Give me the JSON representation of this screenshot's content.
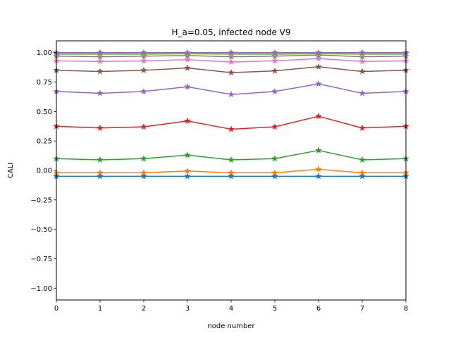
{
  "chart_data": {
    "type": "line",
    "title": "H_a=0.05, infected node V9",
    "xlabel": "node number",
    "ylabel": "CALI",
    "xlim": [
      0,
      8
    ],
    "ylim": [
      -1.1,
      1.1
    ],
    "x": [
      0,
      1,
      2,
      3,
      4,
      5,
      6,
      7,
      8
    ],
    "xticks": [
      "0",
      "1",
      "2",
      "3",
      "4",
      "5",
      "6",
      "7",
      "8"
    ],
    "yticks": [
      -1.0,
      -0.75,
      -0.5,
      -0.25,
      0.0,
      0.25,
      0.5,
      0.75,
      1.0
    ],
    "ytick_labels": [
      "−1.00",
      "−0.75",
      "−0.50",
      "−0.25",
      "0.00",
      "0.25",
      "0.50",
      "0.75",
      "1.00"
    ],
    "grid": false,
    "marker": "star",
    "series": [
      {
        "color": "#1f77b4",
        "values": [
          -0.05,
          -0.05,
          -0.05,
          -0.05,
          -0.05,
          -0.05,
          -0.05,
          -0.05,
          -0.05
        ]
      },
      {
        "color": "#ff7f0e",
        "values": [
          -0.02,
          -0.02,
          -0.02,
          -0.005,
          -0.02,
          -0.02,
          0.01,
          -0.02,
          -0.02
        ]
      },
      {
        "color": "#2ca02c",
        "values": [
          0.1,
          0.09,
          0.1,
          0.13,
          0.09,
          0.1,
          0.17,
          0.09,
          0.1
        ]
      },
      {
        "color": "#d62728",
        "values": [
          0.375,
          0.36,
          0.37,
          0.42,
          0.35,
          0.37,
          0.46,
          0.36,
          0.375
        ]
      },
      {
        "color": "#9467bd",
        "values": [
          0.67,
          0.655,
          0.67,
          0.71,
          0.645,
          0.67,
          0.735,
          0.655,
          0.67
        ]
      },
      {
        "color": "#8c564b",
        "values": [
          0.85,
          0.84,
          0.85,
          0.87,
          0.83,
          0.845,
          0.88,
          0.84,
          0.85
        ]
      },
      {
        "color": "#e377c2",
        "values": [
          0.93,
          0.925,
          0.93,
          0.94,
          0.92,
          0.93,
          0.95,
          0.925,
          0.93
        ]
      },
      {
        "color": "#7f7f7f",
        "values": [
          0.97,
          0.965,
          0.97,
          0.975,
          0.965,
          0.97,
          0.98,
          0.965,
          0.97
        ]
      },
      {
        "color": "#bcbd22",
        "values": [
          0.985,
          0.985,
          0.985,
          0.99,
          0.985,
          0.985,
          0.99,
          0.985,
          0.985
        ]
      },
      {
        "color": "#17becf",
        "values": [
          0.995,
          0.995,
          0.995,
          0.995,
          0.995,
          0.995,
          0.995,
          0.995,
          0.995
        ]
      },
      {
        "color": "#9467bd",
        "values": [
          1.0,
          1.0,
          1.0,
          1.0,
          1.0,
          1.0,
          1.0,
          1.0,
          1.0
        ]
      }
    ]
  }
}
